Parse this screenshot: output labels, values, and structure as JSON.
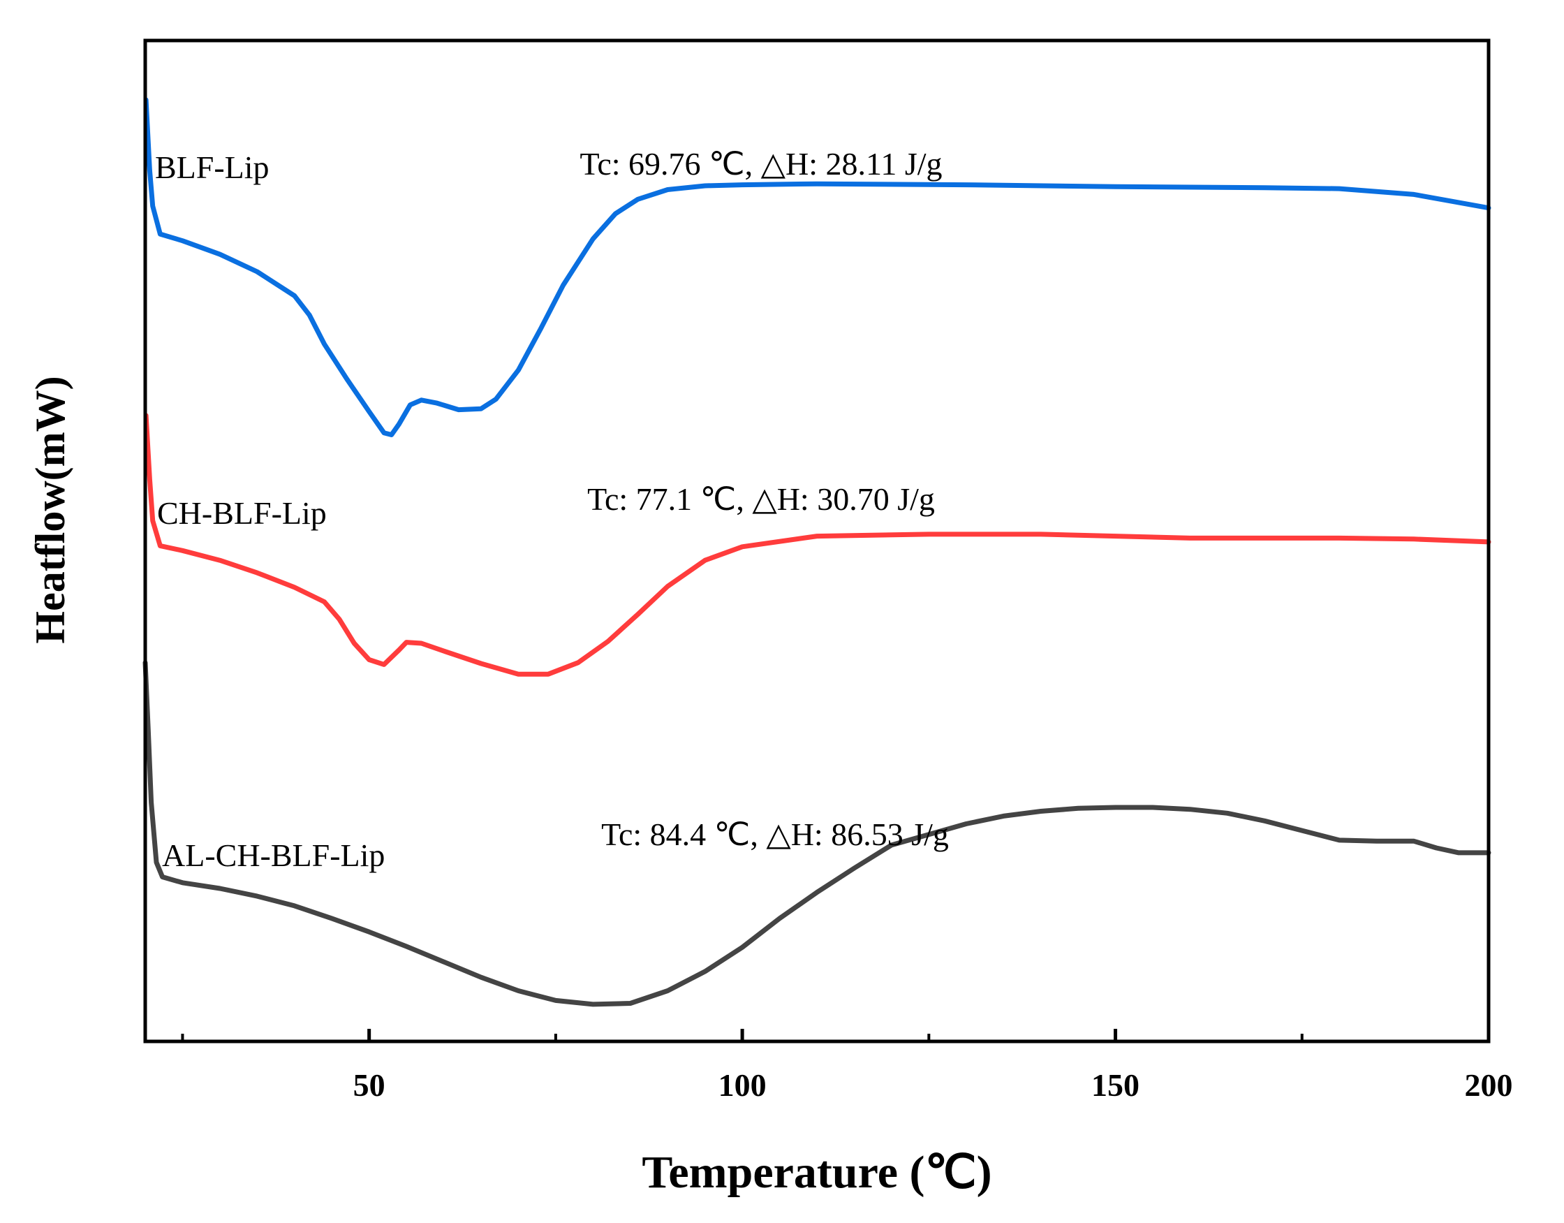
{
  "chart_data": {
    "type": "line",
    "title": "",
    "xlabel": "Temperature (℃)",
    "ylabel": "Heatflow(mW)",
    "xlim": [
      20,
      200
    ],
    "ylim": [
      0,
      100
    ],
    "grid": false,
    "y_tick_labels": false,
    "x_ticks": [
      {
        "value": 50,
        "label": "50"
      },
      {
        "value": 100,
        "label": "100"
      },
      {
        "value": 150,
        "label": "150"
      },
      {
        "value": 200,
        "label": "200"
      }
    ],
    "x_minor_ticks": [
      25,
      75,
      125,
      175
    ],
    "series": [
      {
        "name": "BLF-Lip",
        "color": "#0a6fe0",
        "annotation": "Tc: 69.76 ℃, △H: 28.11 J/g",
        "points": [
          [
            20.1,
            95.3
          ],
          [
            20.6,
            88
          ],
          [
            21,
            84.3
          ],
          [
            22,
            81.4
          ],
          [
            25,
            80.7
          ],
          [
            30,
            79.3
          ],
          [
            35,
            77.5
          ],
          [
            40,
            75
          ],
          [
            42,
            73
          ],
          [
            44,
            70
          ],
          [
            47,
            66.4
          ],
          [
            50,
            63
          ],
          [
            52,
            60.8
          ],
          [
            53,
            60.6
          ],
          [
            54,
            61.7
          ],
          [
            55.5,
            63.7
          ],
          [
            57,
            64.2
          ],
          [
            59,
            63.9
          ],
          [
            62,
            63.2
          ],
          [
            65,
            63.3
          ],
          [
            67,
            64.3
          ],
          [
            70,
            67.3
          ],
          [
            73,
            71.6
          ],
          [
            76,
            76.1
          ],
          [
            80,
            80.9
          ],
          [
            83,
            83.5
          ],
          [
            86,
            85
          ],
          [
            90,
            86
          ],
          [
            95,
            86.4
          ],
          [
            100,
            86.5
          ],
          [
            110,
            86.6
          ],
          [
            130,
            86.5
          ],
          [
            150,
            86.3
          ],
          [
            170,
            86.2
          ],
          [
            180,
            86.1
          ],
          [
            190,
            85.5
          ],
          [
            195,
            84.8
          ],
          [
            200,
            84.1
          ]
        ]
      },
      {
        "name": "CH-BLF-Lip",
        "color": "#ff3c3c",
        "annotation": "Tc: 77.1 ℃, △H: 30.70 J/g",
        "points": [
          [
            20.1,
            62.6
          ],
          [
            20.6,
            56
          ],
          [
            21,
            51.7
          ],
          [
            22,
            49.1
          ],
          [
            25,
            48.6
          ],
          [
            30,
            47.6
          ],
          [
            35,
            46.3
          ],
          [
            40,
            44.8
          ],
          [
            44,
            43.3
          ],
          [
            46,
            41.5
          ],
          [
            48,
            39
          ],
          [
            50,
            37.3
          ],
          [
            52,
            36.8
          ],
          [
            54,
            38.3
          ],
          [
            55,
            39.1
          ],
          [
            57,
            39
          ],
          [
            60,
            38.2
          ],
          [
            65,
            36.9
          ],
          [
            70,
            35.8
          ],
          [
            74,
            35.8
          ],
          [
            78,
            37
          ],
          [
            82,
            39.2
          ],
          [
            86,
            42
          ],
          [
            90,
            44.9
          ],
          [
            95,
            47.6
          ],
          [
            100,
            49
          ],
          [
            110,
            50.1
          ],
          [
            125,
            50.3
          ],
          [
            140,
            50.3
          ],
          [
            160,
            49.9
          ],
          [
            180,
            49.9
          ],
          [
            190,
            49.8
          ],
          [
            200,
            49.5
          ]
        ]
      },
      {
        "name": "AL-CH-BLF-Lip",
        "color": "#444444",
        "annotation": "Tc: 84.4 ℃, △H: 86.53 J/g",
        "points": [
          [
            20,
            37
          ],
          [
            20.4,
            30
          ],
          [
            20.8,
            22.5
          ],
          [
            21.5,
            16.3
          ],
          [
            22.3,
            14.8
          ],
          [
            25,
            14.2
          ],
          [
            30,
            13.6
          ],
          [
            35,
            12.8
          ],
          [
            40,
            11.8
          ],
          [
            45,
            10.5
          ],
          [
            50,
            9.1
          ],
          [
            55,
            7.6
          ],
          [
            60,
            6
          ],
          [
            65,
            4.4
          ],
          [
            70,
            3
          ],
          [
            75,
            2
          ],
          [
            80,
            1.6
          ],
          [
            85,
            1.7
          ],
          [
            90,
            3
          ],
          [
            95,
            5
          ],
          [
            100,
            7.5
          ],
          [
            105,
            10.5
          ],
          [
            110,
            13.2
          ],
          [
            115,
            15.7
          ],
          [
            120,
            18.1
          ],
          [
            125,
            19.2
          ],
          [
            130,
            20.3
          ],
          [
            135,
            21.1
          ],
          [
            140,
            21.6
          ],
          [
            145,
            21.9
          ],
          [
            150,
            22
          ],
          [
            155,
            22
          ],
          [
            160,
            21.8
          ],
          [
            165,
            21.4
          ],
          [
            170,
            20.6
          ],
          [
            175,
            19.6
          ],
          [
            180,
            18.6
          ],
          [
            185,
            18.5
          ],
          [
            190,
            18.5
          ],
          [
            193,
            17.8
          ],
          [
            196,
            17.3
          ],
          [
            200,
            17.3
          ]
        ]
      }
    ]
  }
}
